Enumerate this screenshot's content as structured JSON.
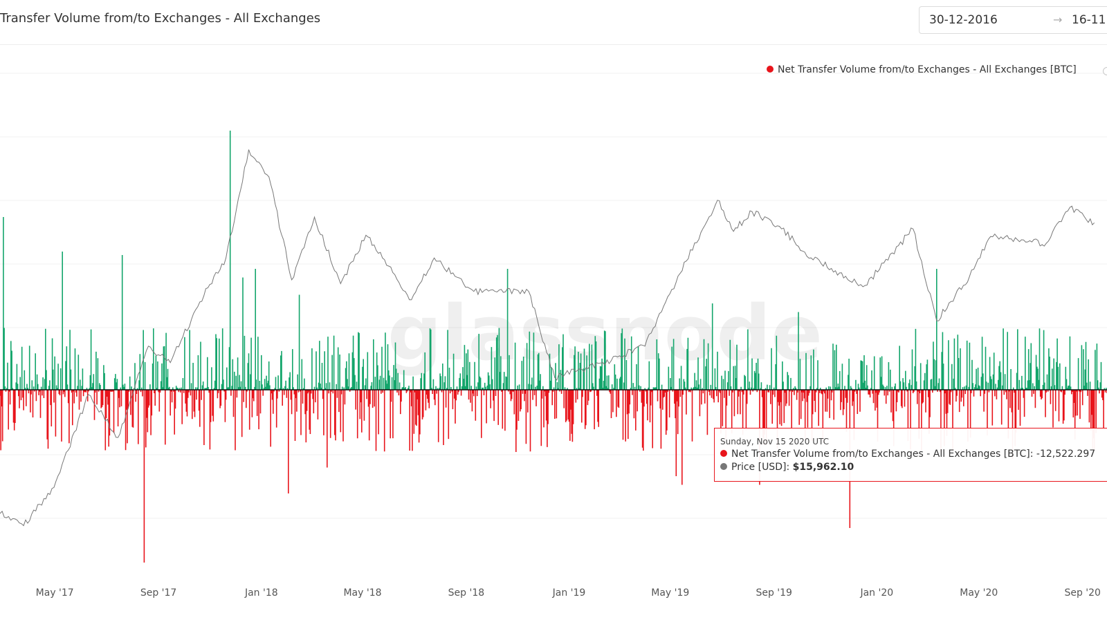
{
  "header": {
    "title": "Transfer Volume from/to Exchanges - All Exchanges",
    "date_start": "30-12-2016",
    "date_arrow": "→",
    "date_end": "16-11"
  },
  "legend": {
    "series1_label": "Net Transfer Volume from/to Exchanges - All Exchanges [BTC]",
    "series1_color": "#e8141b"
  },
  "watermark": "glassnode",
  "tooltip": {
    "date": "Sunday, Nov 15 2020 UTC",
    "series1_label": "Net Transfer Volume from/to Exchanges - All Exchanges [BTC]:",
    "series1_value": "-12,522.297",
    "series2_label": "Price [USD]:",
    "series2_value": "$15,962.10",
    "series2_color": "#777777"
  },
  "colors": {
    "inflow_positive": "#13a56b",
    "outflow_negative": "#e8141b",
    "price_line": "#777777",
    "grid": "#f0f0f0"
  },
  "chart_data": {
    "type": "bar",
    "x_axis": {
      "type": "date",
      "range": [
        "2017-02-25",
        "2020-09-30"
      ],
      "tick_labels": [
        "May '17",
        "Sep '17",
        "Jan '18",
        "May '18",
        "Sep '18",
        "Jan '19",
        "May '19",
        "Sep '19",
        "Jan '20",
        "May '20",
        "Sep '20"
      ]
    },
    "series": [
      {
        "name": "Net Transfer Volume from/to Exchanges - All Exchanges [BTC]",
        "kind": "bar",
        "color_positive": "#13a56b",
        "color_negative": "#e8141b",
        "notable_points": [
          {
            "x": "2017-03-01",
            "y": 1.0
          },
          {
            "x": "2017-05-10",
            "y": 0.8
          },
          {
            "x": "2017-07-20",
            "y": 0.78
          },
          {
            "x": "2017-08-15",
            "y": -1.0
          },
          {
            "x": "2017-11-25",
            "y": 1.5
          },
          {
            "x": "2017-12-01",
            "y": -0.35
          },
          {
            "x": "2017-12-10",
            "y": 0.65
          },
          {
            "x": "2017-12-25",
            "y": 0.7
          },
          {
            "x": "2018-02-02",
            "y": -0.6
          },
          {
            "x": "2018-02-15",
            "y": 0.55
          },
          {
            "x": "2018-03-20",
            "y": -0.45
          },
          {
            "x": "2018-10-20",
            "y": 0.7
          },
          {
            "x": "2019-05-08",
            "y": -0.5
          },
          {
            "x": "2019-05-15",
            "y": -0.55
          },
          {
            "x": "2019-06-20",
            "y": 0.5
          },
          {
            "x": "2019-08-15",
            "y": -0.55
          },
          {
            "x": "2019-09-30",
            "y": 0.45
          },
          {
            "x": "2019-11-30",
            "y": -0.8
          },
          {
            "x": "2020-03-12",
            "y": 0.7
          },
          {
            "x": "2020-06-10",
            "y": -0.4
          }
        ]
      },
      {
        "name": "Price [USD]",
        "kind": "line",
        "color": "#777777",
        "points": [
          {
            "x": "2017-02-25",
            "y": 1100
          },
          {
            "x": "2017-03-25",
            "y": 1000
          },
          {
            "x": "2017-04-30",
            "y": 1350
          },
          {
            "x": "2017-06-10",
            "y": 2800
          },
          {
            "x": "2017-07-15",
            "y": 2000
          },
          {
            "x": "2017-08-20",
            "y": 4100
          },
          {
            "x": "2017-09-15",
            "y": 3600
          },
          {
            "x": "2017-10-20",
            "y": 5800
          },
          {
            "x": "2017-11-20",
            "y": 8200
          },
          {
            "x": "2017-12-17",
            "y": 19200
          },
          {
            "x": "2018-01-10",
            "y": 15500
          },
          {
            "x": "2018-02-06",
            "y": 6900
          },
          {
            "x": "2018-03-05",
            "y": 11300
          },
          {
            "x": "2018-04-05",
            "y": 6700
          },
          {
            "x": "2018-05-05",
            "y": 9800
          },
          {
            "x": "2018-06-28",
            "y": 5900
          },
          {
            "x": "2018-07-25",
            "y": 8200
          },
          {
            "x": "2018-09-10",
            "y": 6300
          },
          {
            "x": "2018-11-14",
            "y": 6300
          },
          {
            "x": "2018-12-15",
            "y": 3200
          },
          {
            "x": "2019-02-10",
            "y": 3600
          },
          {
            "x": "2019-04-01",
            "y": 4100
          },
          {
            "x": "2019-05-20",
            "y": 8000
          },
          {
            "x": "2019-06-26",
            "y": 12900
          },
          {
            "x": "2019-07-15",
            "y": 10100
          },
          {
            "x": "2019-08-06",
            "y": 11800
          },
          {
            "x": "2019-09-10",
            "y": 10300
          },
          {
            "x": "2019-10-15",
            "y": 8200
          },
          {
            "x": "2019-11-25",
            "y": 7100
          },
          {
            "x": "2019-12-18",
            "y": 6600
          },
          {
            "x": "2020-02-13",
            "y": 10300
          },
          {
            "x": "2020-03-12",
            "y": 5000
          },
          {
            "x": "2020-04-20",
            "y": 7100
          },
          {
            "x": "2020-05-15",
            "y": 9700
          },
          {
            "x": "2020-07-20",
            "y": 9200
          },
          {
            "x": "2020-08-17",
            "y": 12200
          },
          {
            "x": "2020-09-15",
            "y": 10800
          }
        ]
      }
    ],
    "grid": true,
    "legend": "top-right"
  }
}
